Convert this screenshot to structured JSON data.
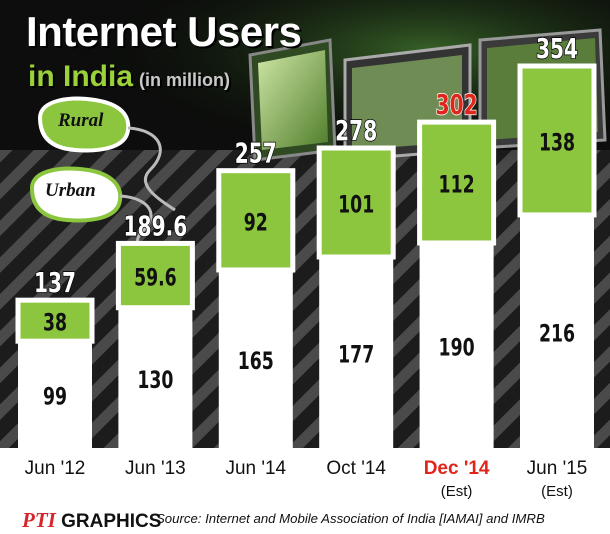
{
  "title": "Internet Users",
  "subtitle": "in India",
  "unit": "(in million)",
  "legend": {
    "rural": "Rural",
    "urban": "Urban"
  },
  "colors": {
    "rural": "#8cc63f",
    "urban": "#ffffff",
    "highlight": "#e0261c",
    "background": "#111111"
  },
  "footer": {
    "logo_mark": "PTI",
    "logo_text": "GRAPHICS",
    "source": "Source: Internet and Mobile Association of India [IAMAI] and IMRB"
  },
  "chart_data": {
    "type": "bar",
    "stacked": true,
    "categories": [
      "Jun '12",
      "Jun '13",
      "Jun '14",
      "Oct '14",
      "Dec '14",
      "Jun '15"
    ],
    "category_notes": [
      "",
      "",
      "",
      "",
      "(Est)",
      "(Est)"
    ],
    "highlight_category": "Dec '14",
    "totals": [
      "137",
      "189.6",
      "257",
      "278",
      "302",
      "354"
    ],
    "series": [
      {
        "name": "Urban",
        "values": [
          99,
          130,
          165,
          177,
          190,
          216
        ],
        "labels": [
          "99",
          "130",
          "165",
          "177",
          "190",
          "216"
        ]
      },
      {
        "name": "Rural",
        "values": [
          38,
          59.6,
          92,
          101,
          112,
          138
        ],
        "labels": [
          "38",
          "59.6",
          "92",
          "101",
          "112",
          "138"
        ]
      }
    ],
    "ylim": [
      0,
      354
    ],
    "grid": false,
    "legend_position": "top-left"
  }
}
